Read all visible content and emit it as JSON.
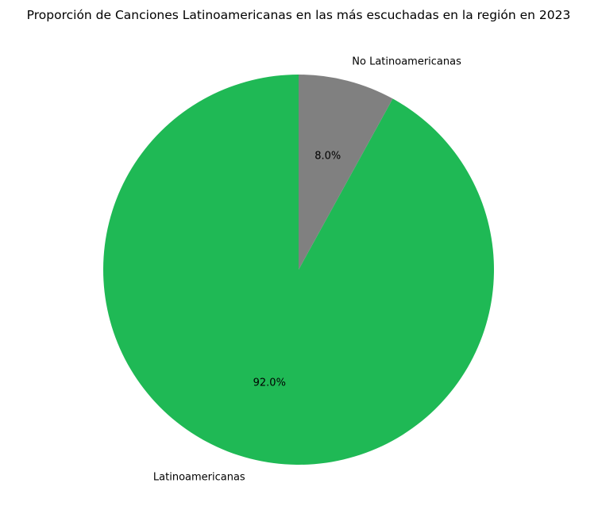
{
  "chart_data": {
    "type": "pie",
    "title": "Proporción de Canciones Latinoamericanas en las más escuchadas en la región en 2023",
    "slices": [
      {
        "label": "Latinoamericanas",
        "value": 92.0,
        "pct_label": "92.0%",
        "color": "#1fb955"
      },
      {
        "label": "No Latinoamericanas",
        "value": 8.0,
        "pct_label": "8.0%",
        "color": "#808080"
      }
    ],
    "start_angle": "top",
    "direction": "counterclockwise",
    "legend": "none"
  }
}
